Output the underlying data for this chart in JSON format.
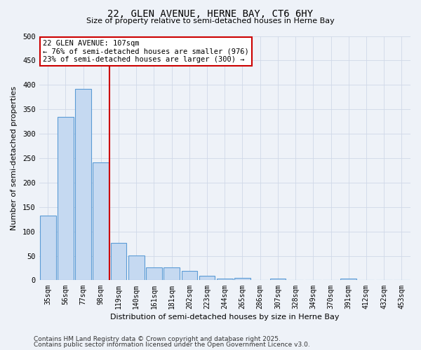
{
  "title": "22, GLEN AVENUE, HERNE BAY, CT6 6HY",
  "subtitle": "Size of property relative to semi-detached houses in Herne Bay",
  "xlabel": "Distribution of semi-detached houses by size in Herne Bay",
  "ylabel": "Number of semi-detached properties",
  "bar_labels": [
    "35sqm",
    "56sqm",
    "77sqm",
    "98sqm",
    "119sqm",
    "140sqm",
    "161sqm",
    "181sqm",
    "202sqm",
    "223sqm",
    "244sqm",
    "265sqm",
    "286sqm",
    "307sqm",
    "328sqm",
    "349sqm",
    "370sqm",
    "391sqm",
    "412sqm",
    "432sqm",
    "453sqm"
  ],
  "bar_values": [
    133,
    335,
    392,
    241,
    76,
    51,
    27,
    26,
    19,
    9,
    3,
    5,
    0,
    4,
    0,
    0,
    0,
    3,
    0,
    0,
    0
  ],
  "bar_color": "#c5d9f1",
  "bar_edge_color": "#5b9bd5",
  "property_line_x": 3.5,
  "property_label": "22 GLEN AVENUE: 107sqm",
  "pct_smaller": "76% of semi-detached houses are smaller (976)",
  "pct_larger": "23% of semi-detached houses are larger (300)",
  "annotation_box_color": "#ffffff",
  "annotation_box_edge": "#cc0000",
  "line_color": "#cc0000",
  "grid_color": "#d0d8e8",
  "background_color": "#eef2f8",
  "footer1": "Contains HM Land Registry data © Crown copyright and database right 2025.",
  "footer2": "Contains public sector information licensed under the Open Government Licence v3.0.",
  "ylim": [
    0,
    500
  ],
  "yticks": [
    0,
    50,
    100,
    150,
    200,
    250,
    300,
    350,
    400,
    450,
    500
  ]
}
